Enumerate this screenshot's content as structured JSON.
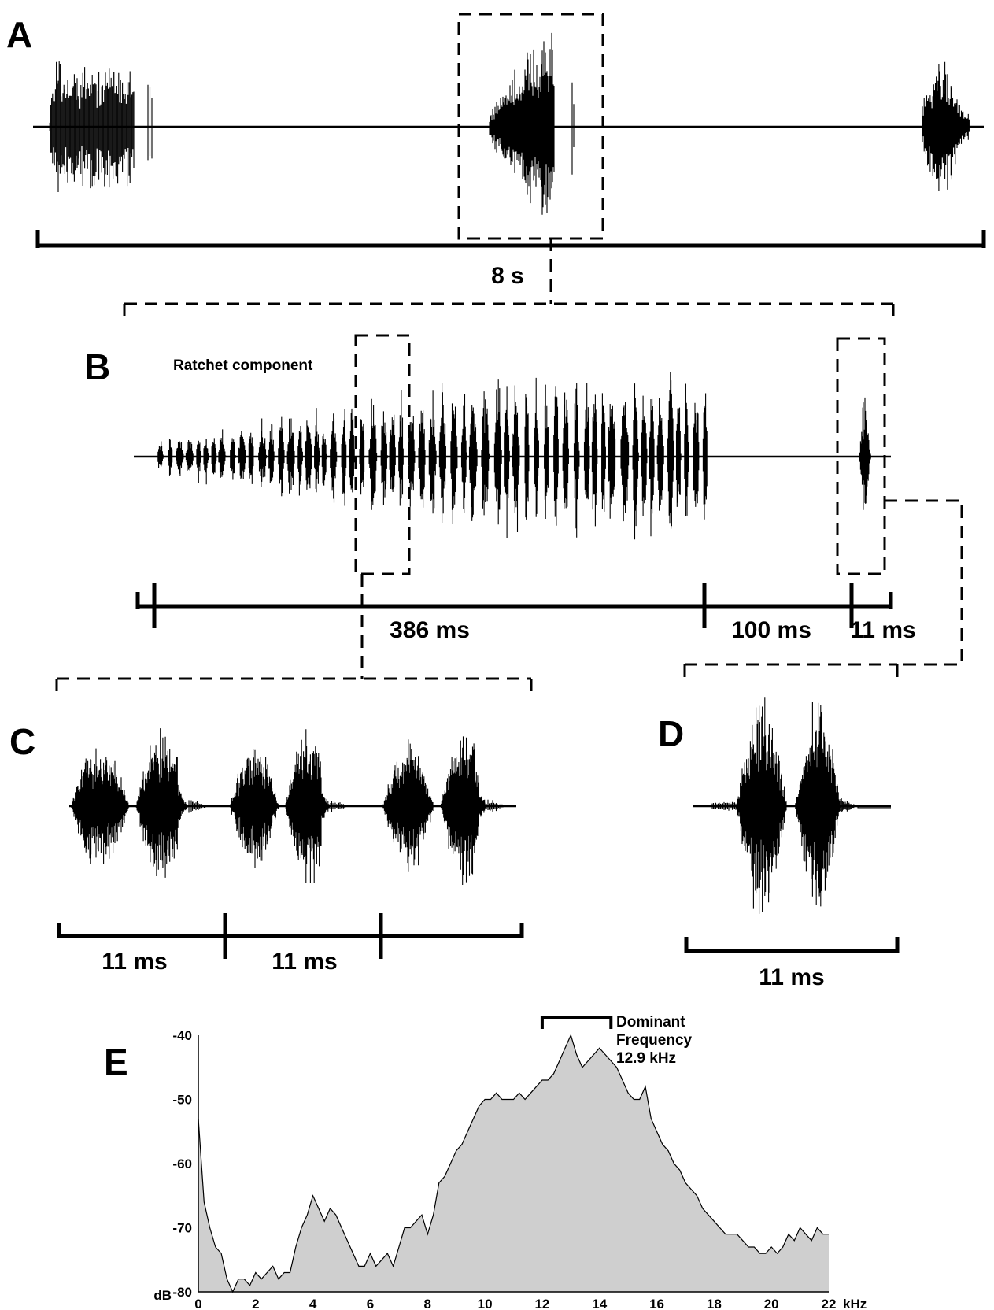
{
  "panels": {
    "A": {
      "letter": "A",
      "scale_label": "8 s"
    },
    "B": {
      "letter": "B",
      "annotation": "Ratchet component",
      "scale_labels": [
        "386 ms",
        "100 ms",
        "11 ms"
      ]
    },
    "C": {
      "letter": "C",
      "scale_labels": [
        "11 ms",
        "11 ms"
      ]
    },
    "D": {
      "letter": "D",
      "scale_label": "11 ms"
    },
    "E": {
      "letter": "E",
      "annotation_line1": "Dominant",
      "annotation_line2": "Frequency",
      "annotation_line3": "12.9 kHz"
    }
  },
  "chart_data": {
    "type": "area",
    "xlabel": "kHz",
    "ylabel": "dB",
    "xlim": [
      0,
      22
    ],
    "ylim": [
      -80,
      -40
    ],
    "x_ticks": [
      "0",
      "2",
      "4",
      "6",
      "8",
      "10",
      "12",
      "14",
      "16",
      "18",
      "20",
      "22"
    ],
    "y_ticks": [
      "-40",
      "-50",
      "-60",
      "-70",
      "-80"
    ],
    "dominant_frequency_khz": 12.9,
    "dominant_band_khz": [
      12.0,
      14.4
    ],
    "x": [
      0,
      0.2,
      0.4,
      0.6,
      0.8,
      1.0,
      1.2,
      1.4,
      1.6,
      1.8,
      2.0,
      2.2,
      2.4,
      2.6,
      2.8,
      3.0,
      3.2,
      3.4,
      3.6,
      3.8,
      4.0,
      4.2,
      4.4,
      4.6,
      4.8,
      5.0,
      5.2,
      5.4,
      5.6,
      5.8,
      6.0,
      6.2,
      6.4,
      6.6,
      6.8,
      7.0,
      7.2,
      7.4,
      7.6,
      7.8,
      8.0,
      8.2,
      8.4,
      8.6,
      8.8,
      9.0,
      9.2,
      9.4,
      9.6,
      9.8,
      10.0,
      10.2,
      10.4,
      10.6,
      10.8,
      11.0,
      11.2,
      11.4,
      11.6,
      11.8,
      12.0,
      12.2,
      12.4,
      12.6,
      12.8,
      13.0,
      13.2,
      13.4,
      13.6,
      13.8,
      14.0,
      14.2,
      14.4,
      14.6,
      14.8,
      15.0,
      15.2,
      15.4,
      15.6,
      15.8,
      16.0,
      16.2,
      16.4,
      16.6,
      16.8,
      17.0,
      17.2,
      17.4,
      17.6,
      17.8,
      18.0,
      18.2,
      18.4,
      18.6,
      18.8,
      19.0,
      19.2,
      19.4,
      19.6,
      19.8,
      20.0,
      20.2,
      20.4,
      20.6,
      20.8,
      21.0,
      21.2,
      21.4,
      21.6,
      21.8,
      22.0
    ],
    "values": [
      -53,
      -66,
      -70,
      -73,
      -74,
      -78,
      -80,
      -78,
      -78,
      -79,
      -77,
      -78,
      -77,
      -76,
      -78,
      -77,
      -77,
      -73,
      -70,
      -68,
      -65,
      -67,
      -69,
      -67,
      -68,
      -70,
      -72,
      -74,
      -76,
      -76,
      -74,
      -76,
      -75,
      -74,
      -76,
      -73,
      -70,
      -70,
      -69,
      -68,
      -71,
      -68,
      -63,
      -62,
      -60,
      -58,
      -57,
      -55,
      -53,
      -51,
      -50,
      -50,
      -49,
      -50,
      -50,
      -50,
      -49,
      -50,
      -49,
      -48,
      -47,
      -47,
      -46,
      -44,
      -42,
      -40,
      -43,
      -45,
      -44,
      -43,
      -42,
      -43,
      -44,
      -45,
      -47,
      -49,
      -50,
      -50,
      -48,
      -53,
      -55,
      -57,
      -58,
      -60,
      -61,
      -63,
      -64,
      -65,
      -67,
      -68,
      -69,
      -70,
      -71,
      -71,
      -71,
      -72,
      -73,
      -73,
      -74,
      -74,
      -73,
      -74,
      -73,
      -71,
      -72,
      -70,
      -71,
      -72,
      -70,
      -71,
      -71
    ]
  }
}
